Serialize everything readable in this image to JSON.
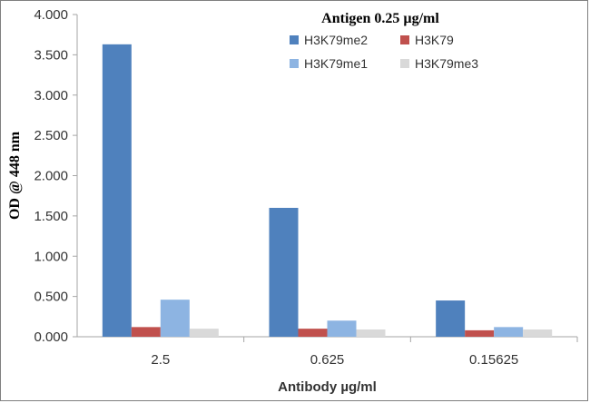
{
  "chart_data": {
    "type": "bar",
    "title": "Antigen 0.25 µg/ml",
    "xlabel": "Antibody µg/ml",
    "ylabel": "OD  @ 448 nm",
    "categories": [
      "2.5",
      "0.625",
      "0.15625"
    ],
    "ylim": [
      0,
      4
    ],
    "yticks": [
      "0.000",
      "0.500",
      "1.000",
      "1.500",
      "2.000",
      "2.500",
      "3.000",
      "3.500",
      "4.000"
    ],
    "grid": false,
    "legend_position": "top-right",
    "series": [
      {
        "name": "H3K79me2",
        "color": "#4f81bd",
        "values": [
          3.63,
          1.6,
          0.45
        ]
      },
      {
        "name": "H3K79",
        "color": "#c0504d",
        "values": [
          0.12,
          0.1,
          0.08
        ]
      },
      {
        "name": "H3K79me1",
        "color": "#8db4e2",
        "values": [
          0.46,
          0.2,
          0.12
        ]
      },
      {
        "name": "H3K79me3",
        "color": "#d9d9d9",
        "values": [
          0.1,
          0.09,
          0.09
        ]
      }
    ]
  }
}
